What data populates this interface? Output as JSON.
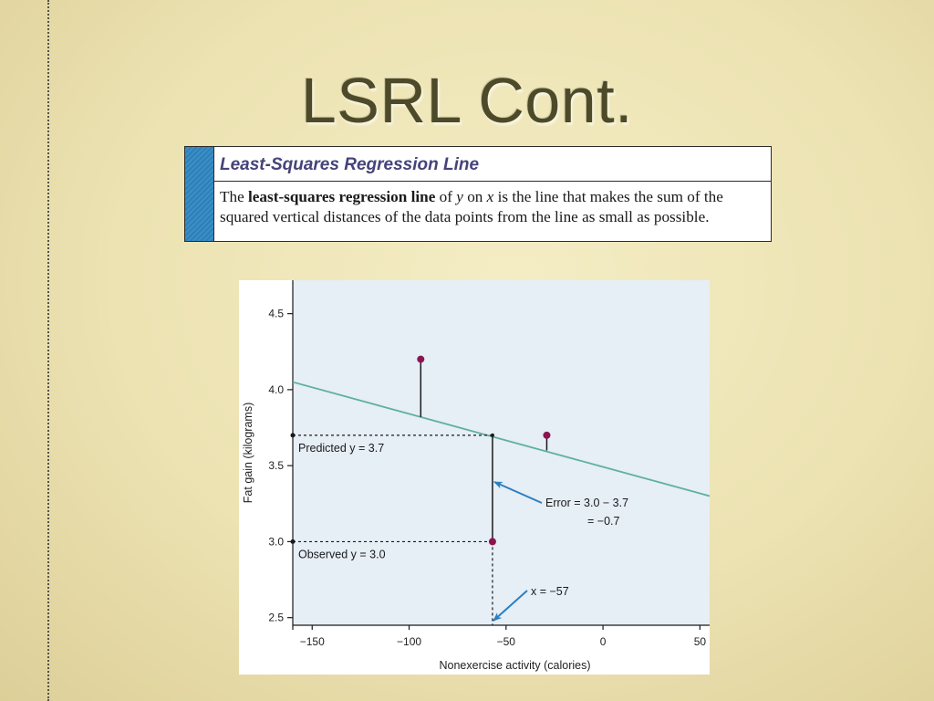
{
  "slide": {
    "title": "LSRL Cont."
  },
  "definition": {
    "header": "Least-Squares Regression Line",
    "body_parts": {
      "p1": "The ",
      "p2": "least-squares regression line",
      "p3": " of ",
      "p4": "y",
      "p5": " on ",
      "p6": "x",
      "p7": " is the line that makes the sum of the squared vertical distances of the data points from the line as small as possible."
    }
  },
  "colors": {
    "plot_bg": "#e6eef6",
    "line": "#5fb0a0",
    "point": "#8c1450",
    "arrow": "#2a7fc0",
    "axis": "#1a1a1a"
  },
  "chart_data": {
    "type": "scatter",
    "xlabel": "Nonexercise activity (calories)",
    "ylabel": "Fat gain (kilograms)",
    "xlim": [
      -160,
      55
    ],
    "ylim": [
      2.45,
      4.72
    ],
    "xticks": [
      -150,
      -100,
      -50,
      0,
      50
    ],
    "xtick_labels": [
      "−150",
      "−100",
      "−50",
      "0",
      "50"
    ],
    "yticks": [
      2.5,
      3.0,
      3.5,
      4.0,
      4.5
    ],
    "ytick_labels": [
      "2.5",
      "3.0",
      "3.5",
      "4.0",
      "4.5"
    ],
    "regression_line": {
      "x1": -160,
      "y1": 4.05,
      "x2": 55,
      "y2": 3.3
    },
    "points": [
      {
        "x": -94,
        "y": 4.2,
        "fitted": 3.82
      },
      {
        "x": -29,
        "y": 3.7,
        "fitted": 3.6
      },
      {
        "x": -57,
        "y": 3.0,
        "fitted": 3.7
      }
    ],
    "highlight": {
      "x": -57,
      "observed": 3.0,
      "predicted": 3.7
    },
    "annotations": {
      "predicted": "Predicted y = 3.7",
      "observed": "Observed y = 3.0",
      "error_line1": "Error = 3.0 − 3.7",
      "error_line2": "= −0.7",
      "x_label": "x = −57"
    }
  }
}
